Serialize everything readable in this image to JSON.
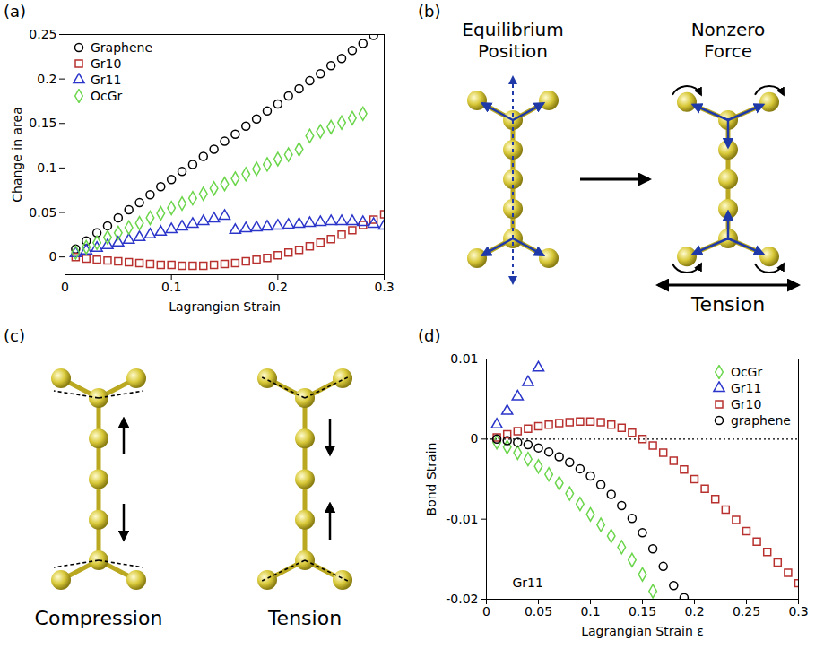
{
  "chart_data": [
    {
      "type": "scatter",
      "title": "(a)",
      "x_label": "Lagrangian Strain",
      "y_label": "Change in area",
      "xlim": [
        0,
        0.3
      ],
      "xticks": [
        0,
        0.1,
        0.2,
        0.3
      ],
      "ylim": [
        -0.02,
        0.25
      ],
      "yticks": [
        0,
        0.05,
        0.1,
        0.15,
        0.2,
        0.25
      ],
      "legend": "top-left",
      "series": [
        {
          "name": "Graphene",
          "color": "#000000",
          "marker": "circle",
          "x": [
            0.01,
            0.02,
            0.03,
            0.04,
            0.05,
            0.06,
            0.07,
            0.08,
            0.09,
            0.1,
            0.11,
            0.12,
            0.13,
            0.14,
            0.15,
            0.16,
            0.17,
            0.18,
            0.19,
            0.2,
            0.21,
            0.22,
            0.23,
            0.24,
            0.25,
            0.26,
            0.27,
            0.28,
            0.29
          ],
          "values": [
            0.009,
            0.018,
            0.027,
            0.035,
            0.044,
            0.053,
            0.061,
            0.07,
            0.079,
            0.087,
            0.096,
            0.104,
            0.113,
            0.121,
            0.13,
            0.138,
            0.147,
            0.155,
            0.164,
            0.172,
            0.181,
            0.189,
            0.198,
            0.206,
            0.215,
            0.223,
            0.232,
            0.24,
            0.249
          ]
        },
        {
          "name": "Gr10",
          "color": "#b8312f",
          "marker": "square",
          "x": [
            0.01,
            0.02,
            0.03,
            0.04,
            0.05,
            0.06,
            0.07,
            0.08,
            0.09,
            0.1,
            0.11,
            0.12,
            0.13,
            0.14,
            0.15,
            0.16,
            0.17,
            0.18,
            0.19,
            0.2,
            0.21,
            0.22,
            0.23,
            0.24,
            0.25,
            0.26,
            0.27,
            0.28,
            0.29,
            0.3
          ],
          "values": [
            0,
            -0.002,
            -0.003,
            -0.004,
            -0.005,
            -0.006,
            -0.007,
            -0.008,
            -0.009,
            -0.009,
            -0.01,
            -0.01,
            -0.01,
            -0.009,
            -0.008,
            -0.007,
            -0.005,
            -0.003,
            -0.001,
            0.002,
            0.005,
            0.008,
            0.012,
            0.016,
            0.02,
            0.025,
            0.03,
            0.036,
            0.042,
            0.048
          ]
        },
        {
          "name": "Gr11",
          "color": "#2b35c9",
          "marker": "triangle",
          "x": [
            0.01,
            0.02,
            0.03,
            0.04,
            0.05,
            0.06,
            0.07,
            0.08,
            0.09,
            0.1,
            0.11,
            0.12,
            0.13,
            0.14,
            0.15,
            0.16,
            0.17,
            0.18,
            0.19,
            0.2,
            0.21,
            0.22,
            0.23,
            0.24,
            0.25,
            0.26,
            0.27,
            0.28,
            0.29,
            0.3
          ],
          "values": [
            0.004,
            0.007,
            0.01,
            0.013,
            0.016,
            0.019,
            0.022,
            0.025,
            0.028,
            0.031,
            0.034,
            0.037,
            0.04,
            0.043,
            0.046,
            0.03,
            0.032,
            0.033,
            0.034,
            0.035,
            0.036,
            0.037,
            0.038,
            0.039,
            0.04,
            0.04,
            0.04,
            0.039,
            0.037,
            0.035
          ]
        },
        {
          "name": "OcGr",
          "color": "#6bd64b",
          "marker": "diamond",
          "x": [
            0.01,
            0.02,
            0.03,
            0.04,
            0.05,
            0.06,
            0.07,
            0.08,
            0.09,
            0.1,
            0.11,
            0.12,
            0.13,
            0.14,
            0.15,
            0.16,
            0.17,
            0.18,
            0.19,
            0.2,
            0.21,
            0.22,
            0.23,
            0.24,
            0.25,
            0.26,
            0.27,
            0.28
          ],
          "values": [
            0.005,
            0.011,
            0.016,
            0.022,
            0.027,
            0.033,
            0.038,
            0.044,
            0.049,
            0.055,
            0.06,
            0.066,
            0.071,
            0.077,
            0.082,
            0.088,
            0.093,
            0.099,
            0.104,
            0.11,
            0.115,
            0.121,
            0.136,
            0.141,
            0.146,
            0.151,
            0.156,
            0.161
          ]
        }
      ]
    },
    {
      "type": "scatter",
      "title": "(d)",
      "x_label": "Lagrangian Strain ε",
      "y_label": "Bond Strain",
      "xlim": [
        0,
        0.3
      ],
      "xticks": [
        0,
        0.05,
        0.1,
        0.15,
        0.2,
        0.25,
        0.3
      ],
      "ylim": [
        -0.02,
        0.01
      ],
      "yticks": [
        -0.02,
        -0.01,
        0,
        0.01
      ],
      "legend": "top-right",
      "baseline": 0,
      "annotations": [
        {
          "text": "Gr11",
          "x": 0.025,
          "y": -0.018
        }
      ],
      "series": [
        {
          "name": "OcGr",
          "color": "#6bd64b",
          "marker": "diamond",
          "x": [
            0.01,
            0.02,
            0.03,
            0.04,
            0.05,
            0.06,
            0.07,
            0.08,
            0.09,
            0.1,
            0.11,
            0.12,
            0.13,
            0.14,
            0.15,
            0.16
          ],
          "values": [
            -0.0004,
            -0.001,
            -0.0017,
            -0.0025,
            -0.0034,
            -0.0044,
            -0.0055,
            -0.0068,
            -0.0081,
            -0.0094,
            -0.0107,
            -0.0121,
            -0.0135,
            -0.0151,
            -0.0169,
            -0.019
          ]
        },
        {
          "name": "Gr11",
          "color": "#2b35c9",
          "marker": "triangle",
          "x": [
            0.01,
            0.02,
            0.03,
            0.04,
            0.05
          ],
          "values": [
            0.0018,
            0.0035,
            0.0053,
            0.0071,
            0.0089
          ]
        },
        {
          "name": "Gr10",
          "color": "#b8312f",
          "marker": "square",
          "x": [
            0.01,
            0.02,
            0.03,
            0.04,
            0.05,
            0.06,
            0.07,
            0.08,
            0.09,
            0.1,
            0.11,
            0.12,
            0.13,
            0.14,
            0.15,
            0.16,
            0.17,
            0.18,
            0.19,
            0.2,
            0.21,
            0.22,
            0.23,
            0.24,
            0.25,
            0.26,
            0.27,
            0.28,
            0.29,
            0.3
          ],
          "values": [
            0.0002,
            0.0006,
            0.001,
            0.0013,
            0.0016,
            0.0018,
            0.002,
            0.0021,
            0.0022,
            0.0022,
            0.0021,
            0.0018,
            0.0014,
            0.0008,
            0,
            -0.0008,
            -0.0017,
            -0.0027,
            -0.0038,
            -0.005,
            -0.0062,
            -0.0075,
            -0.0088,
            -0.0101,
            -0.0115,
            -0.0128,
            -0.0141,
            -0.0154,
            -0.0167,
            -0.018
          ]
        },
        {
          "name": "graphene",
          "color": "#000000",
          "marker": "circle",
          "x": [
            0.01,
            0.02,
            0.03,
            0.04,
            0.05,
            0.06,
            0.07,
            0.08,
            0.09,
            0.1,
            0.11,
            0.12,
            0.13,
            0.14,
            0.15,
            0.16,
            0.17,
            0.18,
            0.19
          ],
          "values": [
            0,
            -0.0002,
            -0.0004,
            -0.0007,
            -0.0011,
            -0.0016,
            -0.0022,
            -0.0029,
            -0.0037,
            -0.0046,
            -0.0057,
            -0.0069,
            -0.0083,
            -0.0099,
            -0.0117,
            -0.0137,
            -0.0159,
            -0.0183,
            -0.0198
          ]
        }
      ]
    }
  ],
  "diagrams": {
    "b": {
      "label": "(b)",
      "left_title": "Equilibrium Position",
      "right_title": "Nonzero Force",
      "force_label": "Tension"
    },
    "c": {
      "label": "(c)",
      "left_caption": "Compression",
      "right_caption": "Tension"
    }
  }
}
